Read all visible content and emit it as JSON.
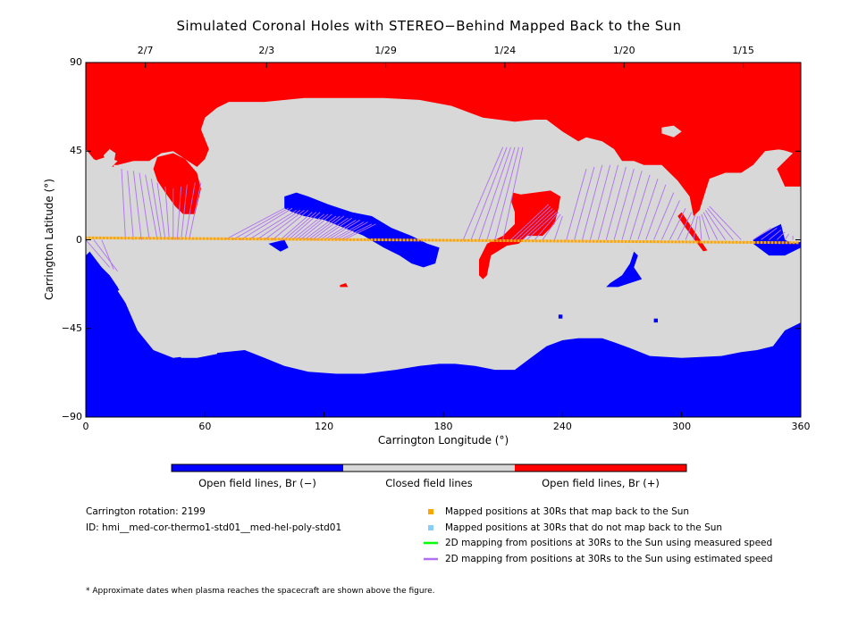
{
  "chart_data": {
    "type": "map",
    "title": "Simulated Coronal Holes with STEREO−Behind Mapped Back to the Sun",
    "xlabel": "Carrington Longitude (°)",
    "ylabel": "Carrington Latitude (°)",
    "xlim": [
      0,
      360
    ],
    "ylim": [
      -90,
      90
    ],
    "x_ticks": [
      "0",
      "60",
      "120",
      "180",
      "240",
      "300",
      "360"
    ],
    "y_ticks": [
      "90",
      "45",
      "0",
      "−45",
      "−90"
    ],
    "top_axis": {
      "dates": [
        {
          "label": "2/7",
          "longitude": 30
        },
        {
          "label": "2/3",
          "longitude": 91
        },
        {
          "label": "1/29",
          "longitude": 151
        },
        {
          "label": "1/24",
          "longitude": 211
        },
        {
          "label": "1/20",
          "longitude": 271
        },
        {
          "label": "1/15",
          "longitude": 331
        }
      ]
    },
    "colorbar": {
      "segments": [
        {
          "label": "Open field lines, Br (−)",
          "color": "#0000ff"
        },
        {
          "label": "Closed field lines",
          "color": "#d8d8d8"
        },
        {
          "label": "Open field lines, Br (+)",
          "color": "#ff0000"
        }
      ]
    },
    "carrington_rotation": "Carrington rotation: 2199",
    "model_id": "ID: hmi__med-cor-thermo1-std01__med-hel-poly-std01",
    "legend": [
      {
        "label": "Mapped positions at 30Rs that map back to the Sun",
        "symbol": "square",
        "color": "#ffa500"
      },
      {
        "label": "Mapped positions at 30Rs that do not map back to the Sun",
        "symbol": "square",
        "color": "#87cefa"
      },
      {
        "label": "2D mapping from positions at 30Rs to the Sun using measured speed",
        "symbol": "line",
        "color": "#00ff00"
      },
      {
        "label": "2D mapping from positions at 30Rs to the Sun using estimated speed",
        "symbol": "line",
        "color": "#b070f0"
      }
    ],
    "footnote": "* Approximate dates when plasma reaches the spacecraft are shown above the figure.",
    "colors": {
      "negative_open": "#0000ff",
      "closed": "#d8d8d8",
      "positive_open": "#ff0000",
      "mapped_point": "#ffa500",
      "estimated_line": "#b070f0",
      "measured_line": "#00ff00"
    },
    "spacecraft_track": {
      "longitude_range": [
        0,
        360
      ],
      "latitude_range": [
        -1.5,
        1.0
      ]
    },
    "mapping_lines": [
      {
        "from": [
          20,
          0
        ],
        "to": [
          18,
          36
        ]
      },
      {
        "from": [
          24,
          0
        ],
        "to": [
          21,
          35
        ]
      },
      {
        "from": [
          28,
          0
        ],
        "to": [
          24,
          35
        ]
      },
      {
        "from": [
          32,
          0
        ],
        "to": [
          27,
          34
        ]
      },
      {
        "from": [
          36,
          0
        ],
        "to": [
          30,
          33
        ]
      },
      {
        "from": [
          38,
          0
        ],
        "to": [
          33,
          31
        ]
      },
      {
        "from": [
          40,
          0
        ],
        "to": [
          36,
          29
        ]
      },
      {
        "from": [
          42,
          0
        ],
        "to": [
          40,
          27
        ]
      },
      {
        "from": [
          44,
          0
        ],
        "to": [
          44,
          26
        ]
      },
      {
        "from": [
          46,
          0
        ],
        "to": [
          48,
          27
        ]
      },
      {
        "from": [
          48,
          0
        ],
        "to": [
          51,
          28
        ]
      },
      {
        "from": [
          50,
          0
        ],
        "to": [
          55,
          29
        ]
      },
      {
        "from": [
          52,
          0
        ],
        "to": [
          58,
          29
        ]
      },
      {
        "from": [
          0,
          0
        ],
        "to": [
          12,
          -14
        ]
      },
      {
        "from": [
          4,
          0
        ],
        "to": [
          16,
          -16
        ]
      },
      {
        "from": [
          8,
          0
        ],
        "to": [
          14,
          -15
        ]
      },
      {
        "from": [
          70,
          0
        ],
        "to": [
          100,
          16
        ]
      },
      {
        "from": [
          74,
          0
        ],
        "to": [
          102,
          16
        ]
      },
      {
        "from": [
          78,
          0
        ],
        "to": [
          104,
          16
        ]
      },
      {
        "from": [
          82,
          0
        ],
        "to": [
          106,
          15
        ]
      },
      {
        "from": [
          86,
          0
        ],
        "to": [
          108,
          15
        ]
      },
      {
        "from": [
          90,
          0
        ],
        "to": [
          110,
          15
        ]
      },
      {
        "from": [
          94,
          0
        ],
        "to": [
          112,
          15
        ]
      },
      {
        "from": [
          98,
          0
        ],
        "to": [
          114,
          14
        ]
      },
      {
        "from": [
          100,
          0
        ],
        "to": [
          116,
          14
        ]
      },
      {
        "from": [
          102,
          0
        ],
        "to": [
          118,
          14
        ]
      },
      {
        "from": [
          104,
          0
        ],
        "to": [
          120,
          13
        ]
      },
      {
        "from": [
          106,
          0
        ],
        "to": [
          122,
          13
        ]
      },
      {
        "from": [
          108,
          0
        ],
        "to": [
          124,
          13
        ]
      },
      {
        "from": [
          110,
          0
        ],
        "to": [
          126,
          12
        ]
      },
      {
        "from": [
          112,
          0
        ],
        "to": [
          128,
          12
        ]
      },
      {
        "from": [
          114,
          0
        ],
        "to": [
          130,
          12
        ]
      },
      {
        "from": [
          116,
          0
        ],
        "to": [
          132,
          11
        ]
      },
      {
        "from": [
          118,
          0
        ],
        "to": [
          134,
          11
        ]
      },
      {
        "from": [
          120,
          0
        ],
        "to": [
          136,
          10
        ]
      },
      {
        "from": [
          122,
          0
        ],
        "to": [
          138,
          10
        ]
      },
      {
        "from": [
          124,
          0
        ],
        "to": [
          140,
          9
        ]
      },
      {
        "from": [
          126,
          0
        ],
        "to": [
          142,
          9
        ]
      },
      {
        "from": [
          128,
          0
        ],
        "to": [
          144,
          8
        ]
      },
      {
        "from": [
          130,
          0
        ],
        "to": [
          146,
          8
        ]
      },
      {
        "from": [
          190,
          0
        ],
        "to": [
          210,
          47
        ]
      },
      {
        "from": [
          194,
          0
        ],
        "to": [
          212,
          47
        ]
      },
      {
        "from": [
          198,
          0
        ],
        "to": [
          214,
          47
        ]
      },
      {
        "from": [
          202,
          0
        ],
        "to": [
          216,
          47
        ]
      },
      {
        "from": [
          206,
          0
        ],
        "to": [
          218,
          47
        ]
      },
      {
        "from": [
          210,
          0
        ],
        "to": [
          220,
          47
        ]
      },
      {
        "from": [
          214,
          0
        ],
        "to": [
          233,
          18
        ]
      },
      {
        "from": [
          216,
          0
        ],
        "to": [
          234,
          17
        ]
      },
      {
        "from": [
          218,
          0
        ],
        "to": [
          235,
          16
        ]
      },
      {
        "from": [
          220,
          0
        ],
        "to": [
          236,
          15
        ]
      },
      {
        "from": [
          222,
          0
        ],
        "to": [
          237,
          14
        ]
      },
      {
        "from": [
          226,
          0
        ],
        "to": [
          238,
          14
        ]
      },
      {
        "from": [
          230,
          0
        ],
        "to": [
          239,
          13
        ]
      },
      {
        "from": [
          236,
          0
        ],
        "to": [
          240,
          12
        ]
      },
      {
        "from": [
          242,
          0
        ],
        "to": [
          252,
          36
        ]
      },
      {
        "from": [
          246,
          0
        ],
        "to": [
          256,
          37
        ]
      },
      {
        "from": [
          250,
          0
        ],
        "to": [
          260,
          38
        ]
      },
      {
        "from": [
          254,
          0
        ],
        "to": [
          264,
          38
        ]
      },
      {
        "from": [
          258,
          0
        ],
        "to": [
          268,
          38
        ]
      },
      {
        "from": [
          262,
          0
        ],
        "to": [
          272,
          37
        ]
      },
      {
        "from": [
          266,
          0
        ],
        "to": [
          276,
          36
        ]
      },
      {
        "from": [
          270,
          0
        ],
        "to": [
          280,
          35
        ]
      },
      {
        "from": [
          274,
          0
        ],
        "to": [
          284,
          33
        ]
      },
      {
        "from": [
          278,
          0
        ],
        "to": [
          288,
          31
        ]
      },
      {
        "from": [
          282,
          0
        ],
        "to": [
          292,
          28
        ]
      },
      {
        "from": [
          286,
          0
        ],
        "to": [
          296,
          24
        ]
      },
      {
        "from": [
          290,
          0
        ],
        "to": [
          299,
          20
        ]
      },
      {
        "from": [
          294,
          0
        ],
        "to": [
          302,
          16
        ]
      },
      {
        "from": [
          298,
          0
        ],
        "to": [
          305,
          14
        ]
      },
      {
        "from": [
          302,
          0
        ],
        "to": [
          307,
          13
        ]
      },
      {
        "from": [
          306,
          0
        ],
        "to": [
          308,
          12
        ]
      },
      {
        "from": [
          310,
          0
        ],
        "to": [
          309,
          12
        ]
      },
      {
        "from": [
          314,
          0
        ],
        "to": [
          310,
          13
        ]
      },
      {
        "from": [
          318,
          0
        ],
        "to": [
          311,
          14
        ]
      },
      {
        "from": [
          322,
          0
        ],
        "to": [
          312,
          15
        ]
      },
      {
        "from": [
          326,
          0
        ],
        "to": [
          313,
          16
        ]
      },
      {
        "from": [
          330,
          0
        ],
        "to": [
          314,
          17
        ]
      },
      {
        "from": [
          336,
          0
        ],
        "to": [
          345,
          6
        ]
      },
      {
        "from": [
          340,
          0
        ],
        "to": [
          348,
          6
        ]
      },
      {
        "from": [
          344,
          0
        ],
        "to": [
          350,
          5
        ]
      },
      {
        "from": [
          348,
          0
        ],
        "to": [
          352,
          4
        ]
      },
      {
        "from": [
          352,
          0
        ],
        "to": [
          354,
          3
        ]
      },
      {
        "from": [
          356,
          0
        ],
        "to": [
          356,
          2
        ]
      }
    ]
  }
}
